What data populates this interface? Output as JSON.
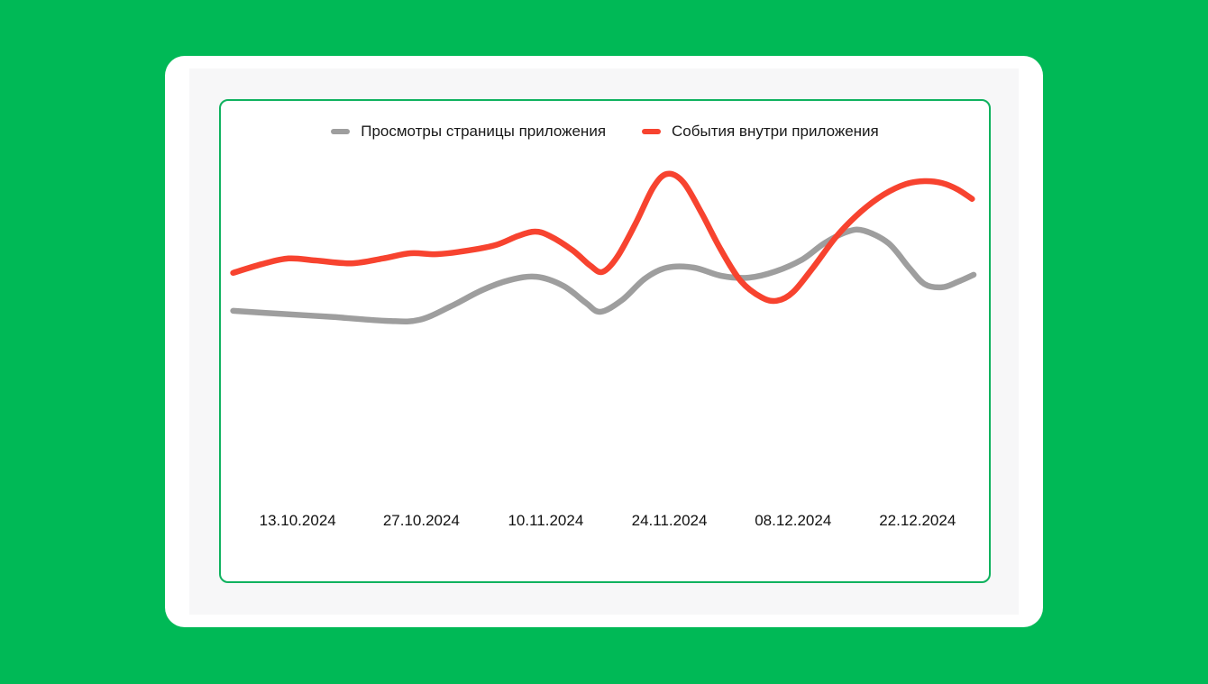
{
  "window": {
    "background": "#00b956",
    "card_background": "#ffffff",
    "surface_background": "#f7f7f8",
    "panel_border": "#10b25f",
    "text_color": "#191919"
  },
  "chart_data": {
    "type": "line",
    "title": "",
    "grid": false,
    "legend_position": "top-center",
    "x_axis": {
      "tick_labels": [
        "13.10.2024",
        "27.10.2024",
        "10.11.2024",
        "24.11.2024",
        "08.12.2024",
        "22.12.2024"
      ],
      "tick_percent": [
        10.0,
        26.1,
        42.3,
        58.4,
        74.5,
        90.7
      ],
      "note": "biweekly dates, no axis line or gridlines shown"
    },
    "y_axis": {
      "visible": false,
      "unit": "relative value 0-100 (no y axis rendered in chart)"
    },
    "series": [
      {
        "name": "Просмотры страницы приложения",
        "color": "#9e9e9e",
        "points": [
          [
            1.6,
            56.3
          ],
          [
            7.6,
            55.7
          ],
          [
            14.7,
            55.0
          ],
          [
            21.7,
            54.2
          ],
          [
            25.8,
            54.4
          ],
          [
            29.9,
            57.2
          ],
          [
            34.0,
            60.6
          ],
          [
            37.6,
            62.7
          ],
          [
            41.1,
            63.4
          ],
          [
            44.6,
            61.5
          ],
          [
            47.5,
            58.0
          ],
          [
            49.4,
            56.1
          ],
          [
            52.2,
            58.5
          ],
          [
            55.2,
            63.0
          ],
          [
            58.1,
            65.3
          ],
          [
            61.6,
            65.3
          ],
          [
            65.1,
            63.6
          ],
          [
            68.7,
            63.2
          ],
          [
            72.2,
            64.5
          ],
          [
            75.7,
            67.0
          ],
          [
            78.6,
            70.4
          ],
          [
            81.6,
            72.8
          ],
          [
            83.7,
            73.0
          ],
          [
            86.9,
            70.4
          ],
          [
            89.6,
            65.3
          ],
          [
            91.6,
            61.9
          ],
          [
            93.9,
            61.2
          ],
          [
            95.9,
            62.3
          ],
          [
            98.0,
            63.8
          ]
        ]
      },
      {
        "name": "События внутри приложения",
        "color": "#f7432f",
        "points": [
          [
            1.6,
            64.2
          ],
          [
            5.3,
            66.0
          ],
          [
            8.8,
            67.2
          ],
          [
            12.3,
            66.8
          ],
          [
            17.0,
            66.2
          ],
          [
            21.1,
            67.2
          ],
          [
            24.7,
            68.3
          ],
          [
            28.2,
            68.1
          ],
          [
            32.3,
            68.9
          ],
          [
            35.8,
            70.0
          ],
          [
            38.7,
            71.9
          ],
          [
            40.9,
            72.8
          ],
          [
            42.8,
            71.9
          ],
          [
            45.8,
            68.9
          ],
          [
            48.1,
            65.7
          ],
          [
            49.7,
            64.4
          ],
          [
            51.6,
            67.5
          ],
          [
            54.0,
            74.5
          ],
          [
            56.3,
            82.0
          ],
          [
            58.1,
            84.8
          ],
          [
            60.2,
            83.1
          ],
          [
            62.6,
            76.6
          ],
          [
            65.1,
            69.0
          ],
          [
            67.7,
            62.5
          ],
          [
            70.4,
            59.1
          ],
          [
            72.4,
            58.4
          ],
          [
            74.5,
            60.2
          ],
          [
            77.1,
            65.3
          ],
          [
            80.2,
            71.9
          ],
          [
            83.3,
            76.9
          ],
          [
            86.3,
            80.5
          ],
          [
            89.2,
            82.7
          ],
          [
            91.6,
            83.3
          ],
          [
            93.9,
            82.9
          ],
          [
            95.9,
            81.6
          ],
          [
            97.8,
            79.6
          ]
        ]
      }
    ]
  }
}
